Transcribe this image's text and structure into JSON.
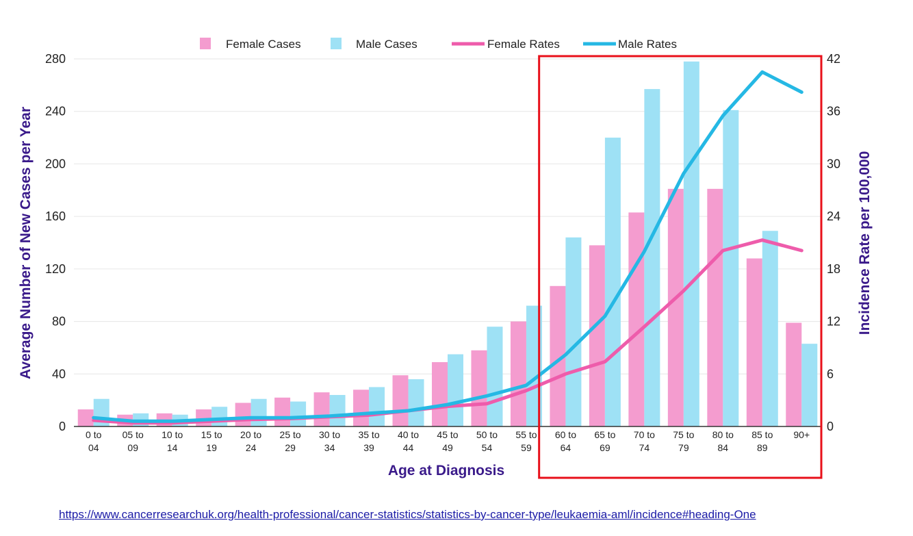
{
  "chart_data": {
    "type": "bar",
    "categories": [
      [
        "0 to",
        "04"
      ],
      [
        "05 to",
        "09"
      ],
      [
        "10 to",
        "14"
      ],
      [
        "15 to",
        "19"
      ],
      [
        "20 to",
        "24"
      ],
      [
        "25 to",
        "29"
      ],
      [
        "30 to",
        "34"
      ],
      [
        "35 to",
        "39"
      ],
      [
        "40 to",
        "44"
      ],
      [
        "45 to",
        "49"
      ],
      [
        "50 to",
        "54"
      ],
      [
        "55 to",
        "59"
      ],
      [
        "60 to",
        "64"
      ],
      [
        "65 to",
        "69"
      ],
      [
        "70 to",
        "74"
      ],
      [
        "75 to",
        "79"
      ],
      [
        "80 to",
        "84"
      ],
      [
        "85 to",
        "89"
      ],
      [
        "90+",
        ""
      ]
    ],
    "series": [
      {
        "name": "Female Cases",
        "kind": "bar",
        "axis": "left",
        "color": "#f49ccf",
        "values": [
          13,
          9,
          10,
          13,
          18,
          22,
          26,
          28,
          39,
          49,
          58,
          80,
          107,
          138,
          163,
          181,
          181,
          128,
          79
        ]
      },
      {
        "name": "Male Cases",
        "kind": "bar",
        "axis": "left",
        "color": "#9ee1f5",
        "values": [
          21,
          10,
          9,
          15,
          21,
          19,
          24,
          30,
          36,
          55,
          76,
          92,
          144,
          220,
          257,
          278,
          241,
          149,
          63
        ]
      },
      {
        "name": "Female Rates",
        "kind": "line",
        "axis": "right",
        "color": "#ee5cab",
        "values": [
          0.7,
          0.4,
          0.4,
          0.6,
          0.8,
          0.9,
          1.1,
          1.3,
          1.8,
          2.3,
          2.6,
          4.1,
          6.0,
          7.4,
          11.4,
          15.5,
          20.1,
          21.3,
          20.1
        ]
      },
      {
        "name": "Male Rates",
        "kind": "line",
        "axis": "right",
        "color": "#25b8e4",
        "values": [
          1.0,
          0.6,
          0.6,
          0.8,
          1.0,
          1.0,
          1.2,
          1.5,
          1.8,
          2.5,
          3.5,
          4.7,
          8.2,
          12.6,
          20.0,
          28.9,
          35.5,
          40.5,
          38.2
        ]
      }
    ],
    "xlabel": "Age at Diagnosis",
    "ylabel": "Average Number of New Cases per Year",
    "y2label": "Incidence Rate per 100,000",
    "ylim": [
      0,
      280
    ],
    "yticks": [
      0,
      40,
      80,
      120,
      160,
      200,
      240,
      280
    ],
    "y2lim": [
      0,
      42
    ],
    "y2ticks": [
      0,
      6,
      12,
      18,
      24,
      30,
      36,
      42
    ],
    "grid": true,
    "legend_position": "top",
    "highlight": {
      "label": "highlighted age range",
      "from_category": 12,
      "to_category": 18,
      "color": "#e8101a"
    }
  },
  "source_url": "https://www.cancerresearchuk.org/health-professional/cancer-statistics/statistics-by-cancer-type/leukaemia-aml/incidence#heading-One"
}
